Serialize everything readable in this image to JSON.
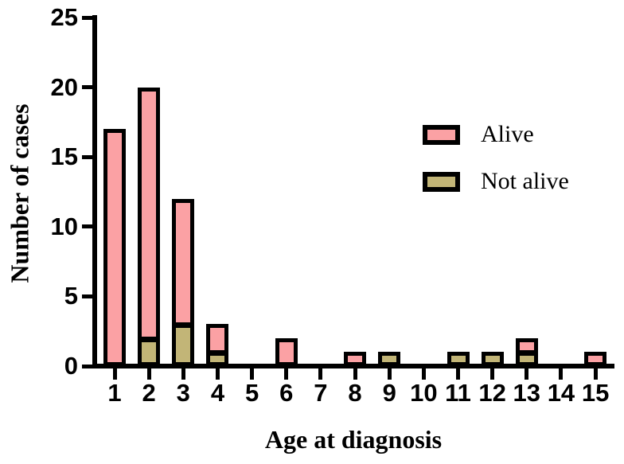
{
  "chart_data": {
    "type": "bar",
    "stacked": true,
    "title": "",
    "xlabel": "Age at diagnosis",
    "ylabel": "Number of cases",
    "categories": [
      "1",
      "2",
      "3",
      "4",
      "5",
      "6",
      "7",
      "8",
      "9",
      "10",
      "11",
      "12",
      "13",
      "14",
      "15"
    ],
    "series": [
      {
        "name": "Alive",
        "color": "#FBA1A4",
        "values": [
          17,
          18,
          9,
          2,
          0,
          2,
          0,
          1,
          0,
          0,
          0,
          0,
          1,
          0,
          1
        ]
      },
      {
        "name": "Not alive",
        "color": "#C2B577",
        "values": [
          0,
          2,
          3,
          1,
          0,
          0,
          0,
          0,
          1,
          0,
          1,
          1,
          1,
          0,
          0
        ]
      }
    ],
    "totals": [
      17,
      20,
      12,
      3,
      0,
      2,
      0,
      1,
      1,
      0,
      1,
      1,
      2,
      0,
      1
    ],
    "stack_order_bottom_to_top": [
      "Not alive",
      "Alive"
    ],
    "ylim": [
      0,
      25
    ],
    "yticks": [
      "0",
      "5",
      "10",
      "15",
      "20",
      "25"
    ],
    "grid": false,
    "legend_position": "upper-right",
    "bar_outline_color": "#000000",
    "axis_color": "#000000"
  }
}
